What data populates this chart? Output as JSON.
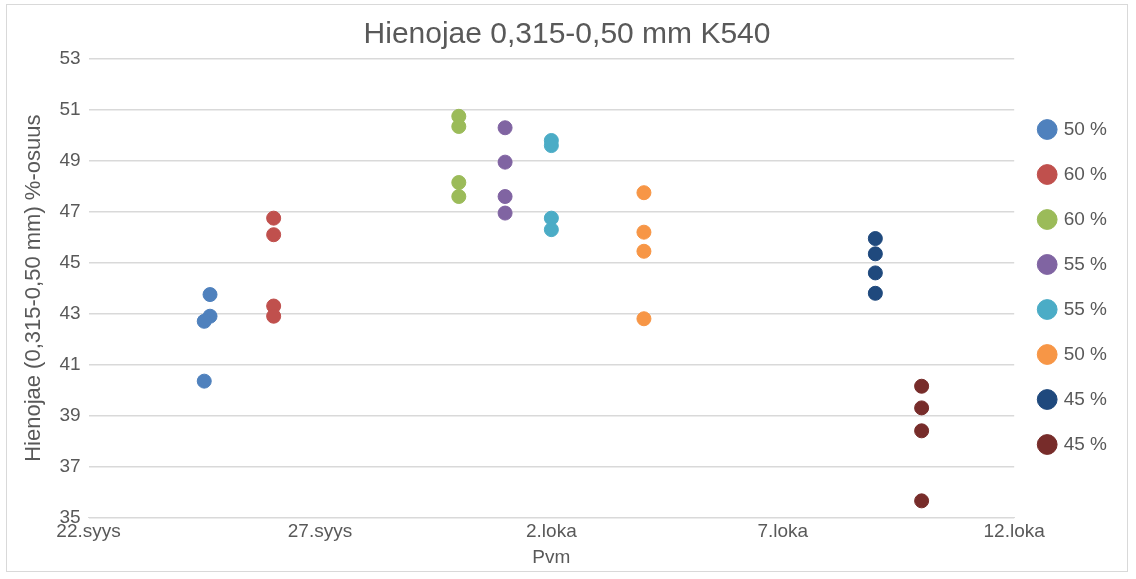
{
  "chart_data": {
    "type": "scatter",
    "title": "Hienojae 0,315-0,50 mm K540",
    "xlabel": "Pvm",
    "ylabel": "Hienojae (0,315-0,50 mm) %-osuus",
    "xlim": [
      "--09-22",
      "--10-12"
    ],
    "xticks": [
      {
        "value": "--09-22",
        "label": "22.syys"
      },
      {
        "value": "--09-27",
        "label": "27.syys"
      },
      {
        "value": "--10-02",
        "label": "2.loka"
      },
      {
        "value": "--10-07",
        "label": "7.loka"
      },
      {
        "value": "--10-12",
        "label": "12.loka"
      }
    ],
    "ylim": [
      35,
      53
    ],
    "yticks": [
      35,
      37,
      39,
      41,
      43,
      45,
      47,
      49,
      51,
      53
    ],
    "grid": "y",
    "legend": "right",
    "marker": "circle",
    "series": [
      {
        "name": "50 %",
        "color": "#4f81bd",
        "x": [
          "--09-24T15:00",
          "--09-24T15:00",
          "--09-24T12:00",
          "--09-24T12:00"
        ],
        "values": [
          43.75,
          42.9,
          42.7,
          40.35
        ]
      },
      {
        "name": "60 %",
        "color": "#c0504d",
        "x": [
          "--09-26",
          "--09-26",
          "--09-26",
          "--09-26"
        ],
        "values": [
          46.75,
          46.1,
          43.3,
          42.9
        ]
      },
      {
        "name": "60 %",
        "color": "#9bbb59",
        "x": [
          "--09-30",
          "--09-30",
          "--09-30",
          "--09-30"
        ],
        "values": [
          50.75,
          50.35,
          48.15,
          47.6
        ]
      },
      {
        "name": "55 %",
        "color": "#8064a2",
        "x": [
          "--10-01",
          "--10-01",
          "--10-01",
          "--10-01"
        ],
        "values": [
          50.3,
          48.95,
          47.6,
          46.95
        ]
      },
      {
        "name": "55 %",
        "color": "#4bacc6",
        "x": [
          "--10-02",
          "--10-02",
          "--10-02",
          "--10-02"
        ],
        "values": [
          49.8,
          49.6,
          46.75,
          46.3
        ]
      },
      {
        "name": "50 %",
        "color": "#f79646",
        "x": [
          "--10-04",
          "--10-04",
          "--10-04",
          "--10-04"
        ],
        "values": [
          47.75,
          46.2,
          45.45,
          42.8
        ]
      },
      {
        "name": "45 %",
        "color": "#1f497d",
        "x": [
          "--10-09",
          "--10-09",
          "--10-09",
          "--10-09"
        ],
        "values": [
          45.95,
          45.35,
          44.6,
          43.8
        ]
      },
      {
        "name": "45 %",
        "color": "#772c2a",
        "x": [
          "--10-10",
          "--10-10",
          "--10-10",
          "--10-10"
        ],
        "values": [
          40.15,
          39.3,
          38.4,
          35.65
        ]
      }
    ]
  }
}
